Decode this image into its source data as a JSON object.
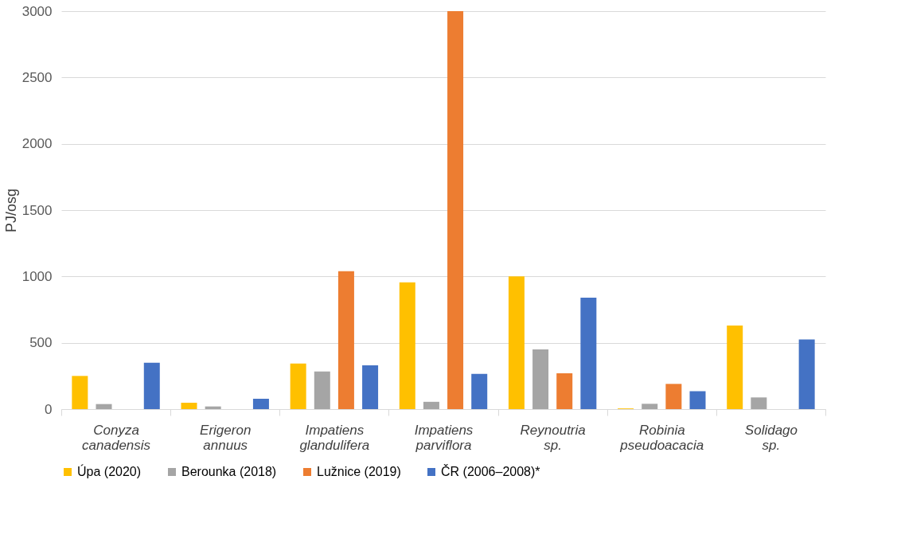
{
  "chart_data": {
    "type": "bar",
    "ylabel": "PJ/osg",
    "categories": [
      "Conyza canadensis",
      "Erigeron annuus",
      "Impatiens glandulifera",
      "Impatiens parviflora",
      "Reynoutria sp.",
      "Robinia pseudoacacia",
      "Solidago sp."
    ],
    "series": [
      {
        "name": "Úpa (2020)",
        "color": "#ffc000",
        "values": [
          250,
          48,
          343,
          956,
          1000,
          5,
          630
        ]
      },
      {
        "name": "Berounka (2018)",
        "color": "#a5a5a5",
        "values": [
          38,
          20,
          283,
          55,
          450,
          40,
          88
        ]
      },
      {
        "name": "Lužnice (2019)",
        "color": "#ed7d31",
        "values": [
          null,
          null,
          1040,
          3000,
          270,
          190,
          null
        ]
      },
      {
        "name": "ČR (2006–2008)*",
        "color": "#4472c4",
        "values": [
          350,
          78,
          330,
          265,
          840,
          135,
          525
        ]
      }
    ],
    "ylim": [
      0,
      3000
    ],
    "yticks": [
      0,
      500,
      1000,
      1500,
      2000,
      2500,
      3000
    ],
    "grid": "y",
    "legend": "bottom"
  }
}
